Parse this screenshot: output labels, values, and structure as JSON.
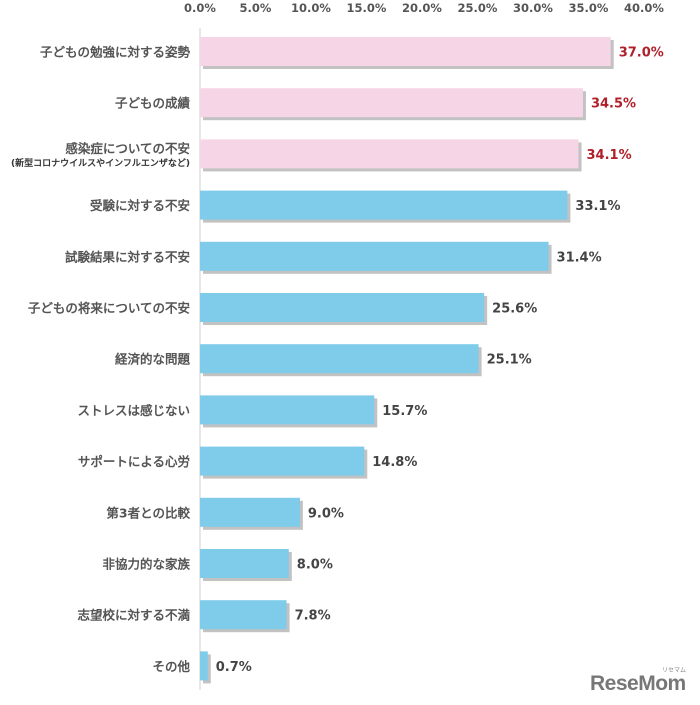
{
  "chart_data": {
    "type": "bar",
    "orientation": "horizontal",
    "categories": [
      {
        "label": "子どもの勉強に対する姿勢",
        "sublabel": ""
      },
      {
        "label": "子どもの成績",
        "sublabel": ""
      },
      {
        "label": "感染症についての不安",
        "sublabel": "(新型コロナウイルスやインフルエンザなど)"
      },
      {
        "label": "受験に対する不安",
        "sublabel": ""
      },
      {
        "label": "試験結果に対する不安",
        "sublabel": ""
      },
      {
        "label": "子どもの将来についての不安",
        "sublabel": ""
      },
      {
        "label": "経済的な問題",
        "sublabel": ""
      },
      {
        "label": "ストレスは感じない",
        "sublabel": ""
      },
      {
        "label": "サポートによる心労",
        "sublabel": ""
      },
      {
        "label": "第3者との比較",
        "sublabel": ""
      },
      {
        "label": "非協力的な家族",
        "sublabel": ""
      },
      {
        "label": "志望校に対する不満",
        "sublabel": ""
      },
      {
        "label": "その他",
        "sublabel": ""
      }
    ],
    "values": [
      37.0,
      34.5,
      34.1,
      33.1,
      31.4,
      25.6,
      25.1,
      15.7,
      14.8,
      9.0,
      8.0,
      7.8,
      0.7
    ],
    "value_labels": [
      "37.0%",
      "34.5%",
      "34.1%",
      "33.1%",
      "31.4%",
      "25.6%",
      "25.1%",
      "15.7%",
      "14.8%",
      "9.0%",
      "8.0%",
      "7.8%",
      "0.7%"
    ],
    "highlighted": [
      true,
      true,
      true,
      false,
      false,
      false,
      false,
      false,
      false,
      false,
      false,
      false,
      false
    ],
    "xlim": [
      0,
      40
    ],
    "xticks": [
      "0.0%",
      "5.0%",
      "10.0%",
      "15.0%",
      "20.0%",
      "25.0%",
      "30.0%",
      "35.0%",
      "40.0%"
    ],
    "xaxis_position": "top",
    "grid": false,
    "title": "",
    "xlabel": "",
    "ylabel": ""
  },
  "colors": {
    "highlight_bar": "#f6d6e6",
    "normal_bar": "#7ecbea",
    "highlight_text": "#b0202a",
    "normal_text": "#444444",
    "shadow": "#9a9a9a"
  },
  "logo": {
    "text": "ReseMom",
    "kana": "リセマム"
  }
}
